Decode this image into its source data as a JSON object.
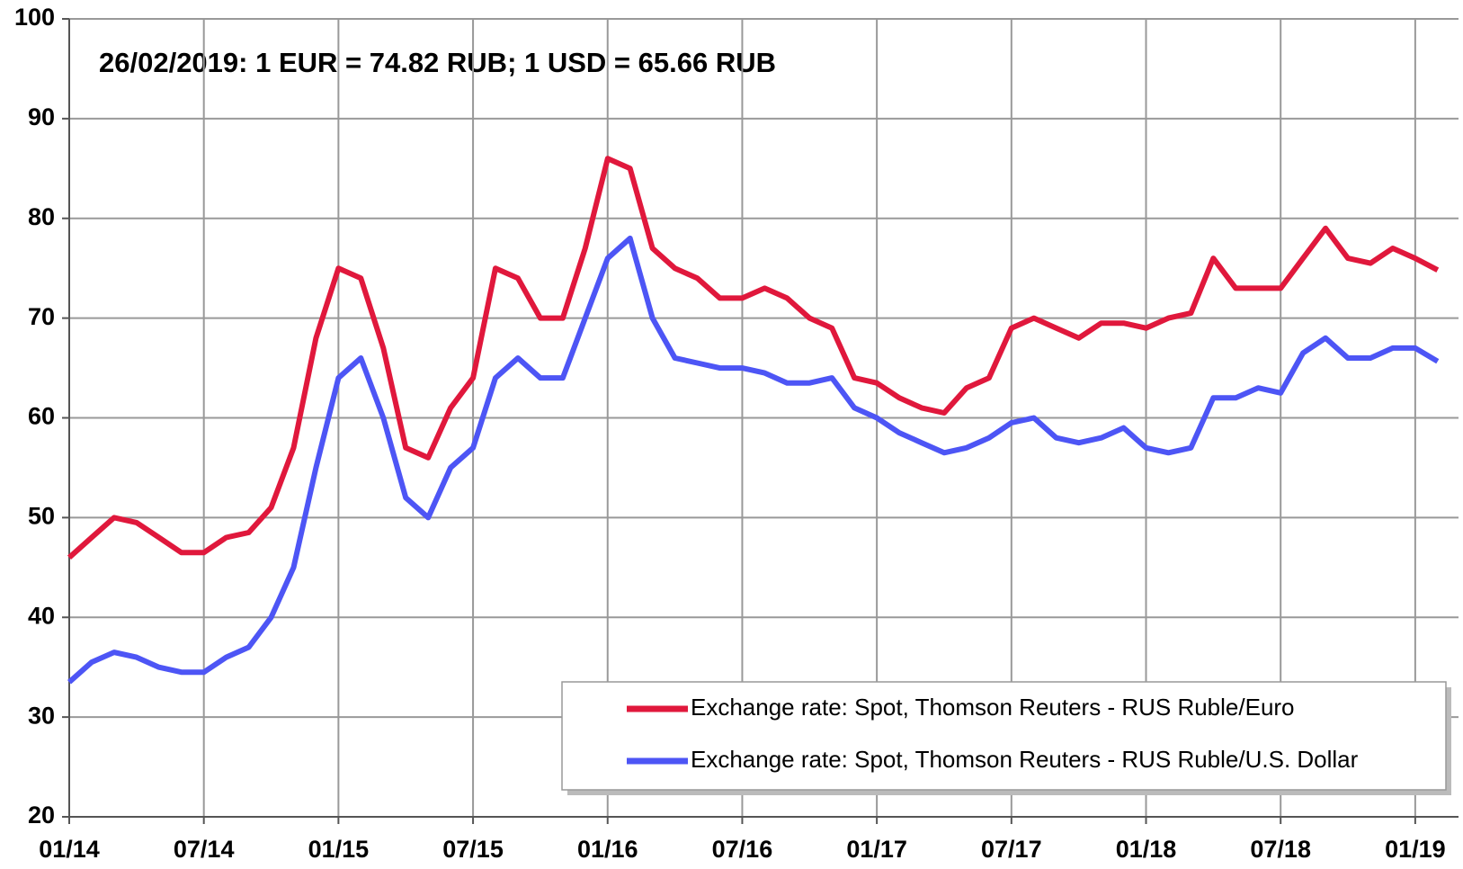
{
  "chart_data": {
    "type": "line",
    "annotation": "26/02/2019:  1 EUR = 74.82 RUB;     1 USD = 65.66 RUB",
    "categories": [
      "01/14",
      null,
      null,
      null,
      null,
      null,
      "07/14",
      null,
      null,
      null,
      null,
      null,
      "01/15",
      null,
      null,
      null,
      null,
      null,
      "07/15",
      null,
      null,
      null,
      null,
      null,
      "01/16",
      null,
      null,
      null,
      null,
      null,
      "07/16",
      null,
      null,
      null,
      null,
      null,
      "01/17",
      null,
      null,
      null,
      null,
      null,
      "07/17",
      null,
      null,
      null,
      null,
      null,
      "01/18",
      null,
      null,
      null,
      null,
      null,
      "07/18",
      null,
      null,
      null,
      null,
      null,
      "01/19",
      null
    ],
    "series": [
      {
        "name": "Exchange rate: Spot, Thomson Reuters - RUS Ruble/Euro",
        "color": "#e0183c",
        "values": [
          46,
          48,
          50,
          49.5,
          48,
          46.5,
          46.5,
          48,
          48.5,
          51,
          57,
          68,
          75,
          74,
          67,
          57,
          56,
          61,
          64,
          75,
          74,
          70,
          70,
          77,
          86,
          85,
          77,
          75,
          74,
          72,
          72,
          73,
          72,
          70,
          69,
          64,
          63.5,
          62,
          61,
          60.5,
          63,
          64,
          69,
          70,
          69,
          68,
          69.5,
          69.5,
          69,
          70,
          70.5,
          76,
          73,
          73,
          73,
          76,
          79,
          76,
          75.5,
          77,
          76,
          74.82
        ]
      },
      {
        "name": "Exchange rate: Spot, Thomson Reuters - RUS Ruble/U.S. Dollar",
        "color": "#4d55f5",
        "values": [
          33.5,
          35.5,
          36.5,
          36,
          35,
          34.5,
          34.5,
          36,
          37,
          40,
          45,
          55,
          64,
          66,
          60,
          52,
          50,
          55,
          57,
          64,
          66,
          64,
          64,
          70,
          76,
          78,
          70,
          66,
          65.5,
          65,
          65,
          64.5,
          63.5,
          63.5,
          64,
          61,
          60,
          58.5,
          57.5,
          56.5,
          57,
          58,
          59.5,
          60,
          58,
          57.5,
          58,
          59,
          57,
          56.5,
          57,
          62,
          62,
          63,
          62.5,
          66.5,
          68,
          66,
          66,
          67,
          67,
          65.66
        ]
      }
    ],
    "ylim": [
      20,
      100
    ],
    "yticks": [
      20,
      30,
      40,
      50,
      60,
      70,
      80,
      90,
      100
    ],
    "grid": true
  }
}
